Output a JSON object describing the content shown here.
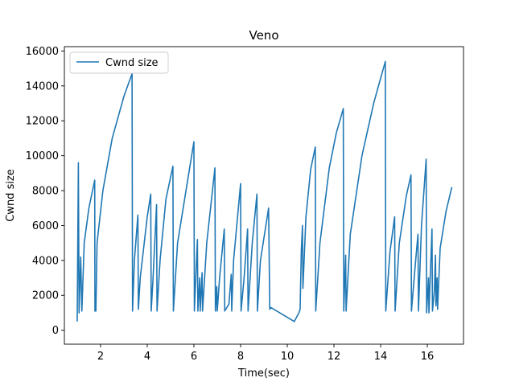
{
  "chart_data": {
    "type": "line",
    "title": "Veno",
    "xlabel": "Time(sec)",
    "ylabel": "Cwnd size",
    "xlim": [
      0.45,
      17.55
    ],
    "ylim": [
      -800,
      16250
    ],
    "xticks": [
      2,
      4,
      6,
      8,
      10,
      12,
      14,
      16
    ],
    "yticks": [
      0,
      2000,
      4000,
      6000,
      8000,
      10000,
      12000,
      14000,
      16000
    ],
    "grid": false,
    "legend": {
      "placement": "upper-left",
      "entries": [
        "Cwnd size"
      ]
    },
    "series": [
      {
        "name": "Cwnd size",
        "color": "#1f77b4",
        "points": [
          [
            1.0,
            500
          ],
          [
            1.05,
            9600
          ],
          [
            1.08,
            1000
          ],
          [
            1.15,
            4200
          ],
          [
            1.2,
            1100
          ],
          [
            1.3,
            5000
          ],
          [
            1.5,
            7000
          ],
          [
            1.75,
            8600
          ],
          [
            1.76,
            1100
          ],
          [
            1.8,
            1100
          ],
          [
            1.85,
            5000
          ],
          [
            2.1,
            8000
          ],
          [
            2.5,
            11000
          ],
          [
            3.0,
            13400
          ],
          [
            3.35,
            14700
          ],
          [
            3.37,
            1100
          ],
          [
            3.45,
            4000
          ],
          [
            3.6,
            6600
          ],
          [
            3.62,
            1200
          ],
          [
            3.7,
            3000
          ],
          [
            4.0,
            6500
          ],
          [
            4.15,
            7800
          ],
          [
            4.17,
            1100
          ],
          [
            4.25,
            3000
          ],
          [
            4.4,
            7200
          ],
          [
            4.42,
            1100
          ],
          [
            4.55,
            4000
          ],
          [
            4.8,
            7500
          ],
          [
            5.1,
            9400
          ],
          [
            5.12,
            1100
          ],
          [
            5.3,
            5000
          ],
          [
            5.6,
            7500
          ],
          [
            6.0,
            10800
          ],
          [
            6.02,
            1100
          ],
          [
            6.15,
            5200
          ],
          [
            6.17,
            1100
          ],
          [
            6.25,
            3000
          ],
          [
            6.27,
            1100
          ],
          [
            6.35,
            3300
          ],
          [
            6.37,
            1100
          ],
          [
            6.55,
            5000
          ],
          [
            6.9,
            9300
          ],
          [
            6.92,
            1100
          ],
          [
            6.98,
            2500
          ],
          [
            7.0,
            1100
          ],
          [
            7.1,
            3000
          ],
          [
            7.3,
            5800
          ],
          [
            7.32,
            1100
          ],
          [
            7.5,
            1500
          ],
          [
            7.6,
            3200
          ],
          [
            7.62,
            1100
          ],
          [
            7.7,
            4000
          ],
          [
            8.0,
            8400
          ],
          [
            8.02,
            1100
          ],
          [
            8.15,
            3000
          ],
          [
            8.3,
            5800
          ],
          [
            8.32,
            1100
          ],
          [
            8.5,
            5000
          ],
          [
            8.7,
            7800
          ],
          [
            8.72,
            1100
          ],
          [
            8.85,
            4000
          ],
          [
            9.2,
            7000
          ],
          [
            9.25,
            1200
          ],
          [
            9.3,
            1300
          ],
          [
            10.3,
            500
          ],
          [
            10.5,
            1000
          ],
          [
            10.55,
            1200
          ],
          [
            10.6,
            4500
          ],
          [
            10.65,
            6000
          ],
          [
            10.67,
            2400
          ],
          [
            10.8,
            6500
          ],
          [
            11.0,
            9200
          ],
          [
            11.2,
            10500
          ],
          [
            11.22,
            1100
          ],
          [
            11.4,
            5000
          ],
          [
            11.8,
            9300
          ],
          [
            12.1,
            11300
          ],
          [
            12.4,
            12700
          ],
          [
            12.42,
            1100
          ],
          [
            12.5,
            4300
          ],
          [
            12.52,
            1100
          ],
          [
            12.7,
            5500
          ],
          [
            13.2,
            10000
          ],
          [
            13.7,
            13000
          ],
          [
            14.2,
            15400
          ],
          [
            14.22,
            1100
          ],
          [
            14.4,
            4500
          ],
          [
            14.6,
            6500
          ],
          [
            14.62,
            1100
          ],
          [
            14.8,
            5000
          ],
          [
            15.1,
            7700
          ],
          [
            15.3,
            8900
          ],
          [
            15.32,
            1100
          ],
          [
            15.5,
            4000
          ],
          [
            15.6,
            5500
          ],
          [
            15.62,
            1100
          ],
          [
            15.75,
            6000
          ],
          [
            15.95,
            9800
          ],
          [
            15.97,
            1000
          ],
          [
            16.05,
            3000
          ],
          [
            16.07,
            1000
          ],
          [
            16.2,
            5800
          ],
          [
            16.22,
            1100
          ],
          [
            16.3,
            2200
          ],
          [
            16.35,
            4300
          ],
          [
            16.37,
            1400
          ],
          [
            16.42,
            3000
          ],
          [
            16.44,
            1200
          ],
          [
            16.55,
            4700
          ],
          [
            16.8,
            6800
          ],
          [
            17.05,
            8200
          ]
        ]
      }
    ]
  }
}
